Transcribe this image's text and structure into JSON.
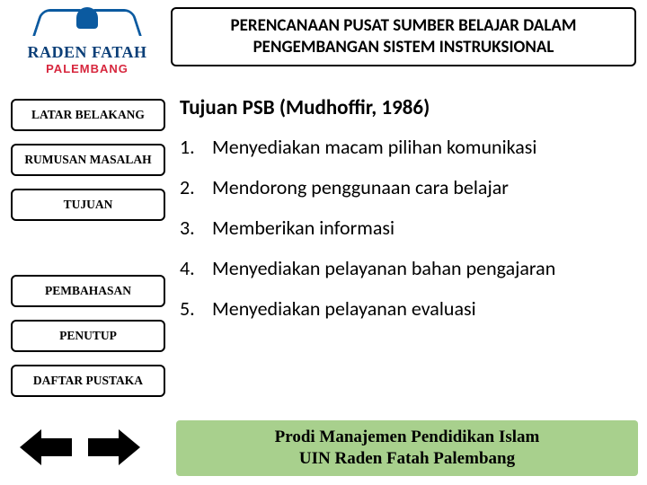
{
  "header": {
    "title": "PERENCANAAN PUSAT SUMBER BELAJAR DALAM PENGEMBANGAN SISTEM INSTRUKSIONAL"
  },
  "logo": {
    "line1": "RADEN FATAH",
    "line2": "PALEMBANG",
    "brand_color": "#0b3f78",
    "accent_color": "#d7263d"
  },
  "sidebar": {
    "items": [
      {
        "label": "LATAR BELAKANG",
        "gap": "none"
      },
      {
        "label": "RUMUSAN MASALAH",
        "gap": "small"
      },
      {
        "label": "TUJUAN",
        "gap": "small"
      },
      {
        "label": "PEMBAHASAN",
        "gap": "large"
      },
      {
        "label": "PENUTUP",
        "gap": "small"
      },
      {
        "label": "DAFTAR PUSTAKA",
        "gap": "small"
      }
    ]
  },
  "content": {
    "title": "Tujuan PSB (Mudhoffir, 1986)",
    "items": [
      "Menyediakan macam pilihan komunikasi",
      "Mendorong penggunaan cara belajar",
      "Memberikan informasi",
      "Menyediakan pelayanan bahan pengajaran",
      "Menyediakan pelayanan evaluasi"
    ]
  },
  "footer": {
    "line1": "Prodi Manajemen Pendidikan Islam",
    "line2": "UIN Raden Fatah Palembang",
    "bg_color": "#a8d08d"
  },
  "style": {
    "page_bg": "#ffffff",
    "border_color": "#000000",
    "title_fontsize": 19,
    "content_title_fontsize": 23,
    "list_fontsize": 22,
    "menu_fontsize": 13.5,
    "footer_fontsize": 19
  }
}
